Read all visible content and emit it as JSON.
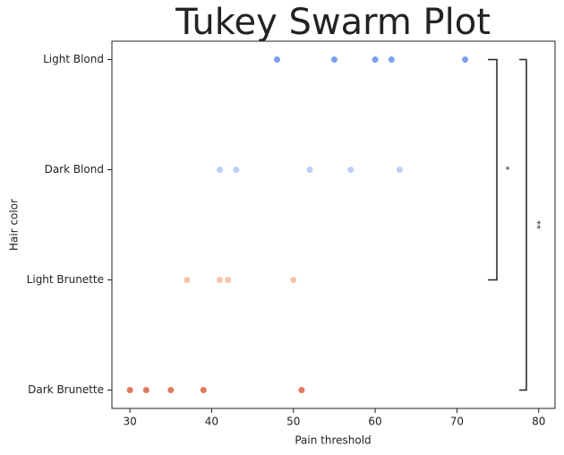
{
  "chart_data": {
    "type": "swarm",
    "title": "Tukey Swarm Plot",
    "x_label": "Pain threshold",
    "y_label": "Hair color",
    "categories": [
      "Light Blond",
      "Dark Blond",
      "Light Brunette",
      "Dark Brunette"
    ],
    "values": [
      [
        48,
        55,
        60,
        62,
        71
      ],
      [
        41,
        43,
        52,
        57,
        63
      ],
      [
        37,
        41,
        42,
        50
      ],
      [
        30,
        32,
        35,
        39,
        51
      ]
    ],
    "colors": [
      "#7b9ff2",
      "#b9d0f9",
      "#f5c4ac",
      "#e0795f"
    ],
    "xlim": [
      27.8,
      82
    ],
    "xticks": [
      30,
      40,
      50,
      60,
      70,
      80
    ],
    "annotations": [
      "*",
      "**"
    ]
  }
}
